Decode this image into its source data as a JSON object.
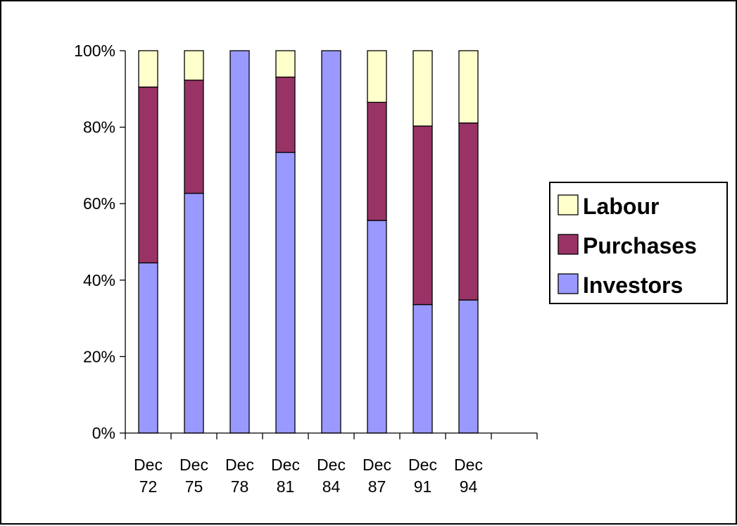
{
  "chart_data": {
    "type": "bar",
    "stacked": "percent",
    "categories": [
      [
        "Dec",
        "72"
      ],
      [
        "Dec",
        "75"
      ],
      [
        "Dec",
        "78"
      ],
      [
        "Dec",
        "81"
      ],
      [
        "Dec",
        "84"
      ],
      [
        "Dec",
        "87"
      ],
      [
        "Dec",
        "91"
      ],
      [
        "Dec",
        "94"
      ]
    ],
    "series": [
      {
        "name": "Investors",
        "color": "#9999ff",
        "values": [
          44.5,
          62.7,
          100,
          73.4,
          100,
          55.6,
          33.6,
          34.8
        ]
      },
      {
        "name": "Purchases",
        "color": "#993366",
        "values": [
          46.0,
          29.6,
          0,
          19.7,
          0,
          30.9,
          46.7,
          46.3
        ]
      },
      {
        "name": "Labour",
        "color": "#ffffcc",
        "values": [
          9.5,
          7.7,
          0,
          6.9,
          0,
          13.5,
          19.7,
          18.9
        ]
      }
    ],
    "legend_order": [
      "Labour",
      "Purchases",
      "Investors"
    ],
    "legend_position": "right",
    "yticks": [
      "0%",
      "20%",
      "40%",
      "60%",
      "80%",
      "100%"
    ],
    "ylim": [
      0,
      100
    ],
    "grid": false,
    "title": "",
    "xlabel": "",
    "ylabel": ""
  }
}
